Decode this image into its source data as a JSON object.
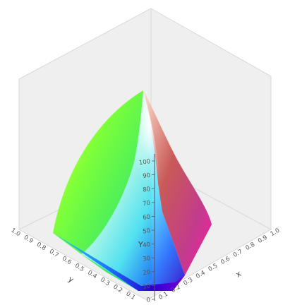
{
  "chart_data": {
    "type": "other",
    "description_of_marks": "3D colour gamut solid",
    "axes": {
      "x": {
        "label": "x",
        "ticks": [
          "0.1",
          "0.2",
          "0.3",
          "0.4",
          "0.5",
          "0.6",
          "0.7",
          "0.8",
          "0.9",
          "1.0"
        ]
      },
      "y": {
        "label": "y",
        "ticks": [
          "0.1",
          "0.2",
          "0.3",
          "0.4",
          "0.5",
          "0.6",
          "0.7",
          "0.8",
          "0.9",
          "1.0"
        ]
      },
      "Y": {
        "label": "Y",
        "ticks": [
          "0",
          "10",
          "20",
          "30",
          "40",
          "50",
          "60",
          "70",
          "80",
          "90",
          "100"
        ]
      }
    },
    "xlim": [
      0,
      1.0
    ],
    "ylim": [
      0,
      1.0
    ],
    "Ylim": [
      0,
      100
    ],
    "grid": false
  },
  "colors": {
    "box_face": "#efefef",
    "box_edge": "#d9d9d9",
    "axis_line": "#555555"
  }
}
